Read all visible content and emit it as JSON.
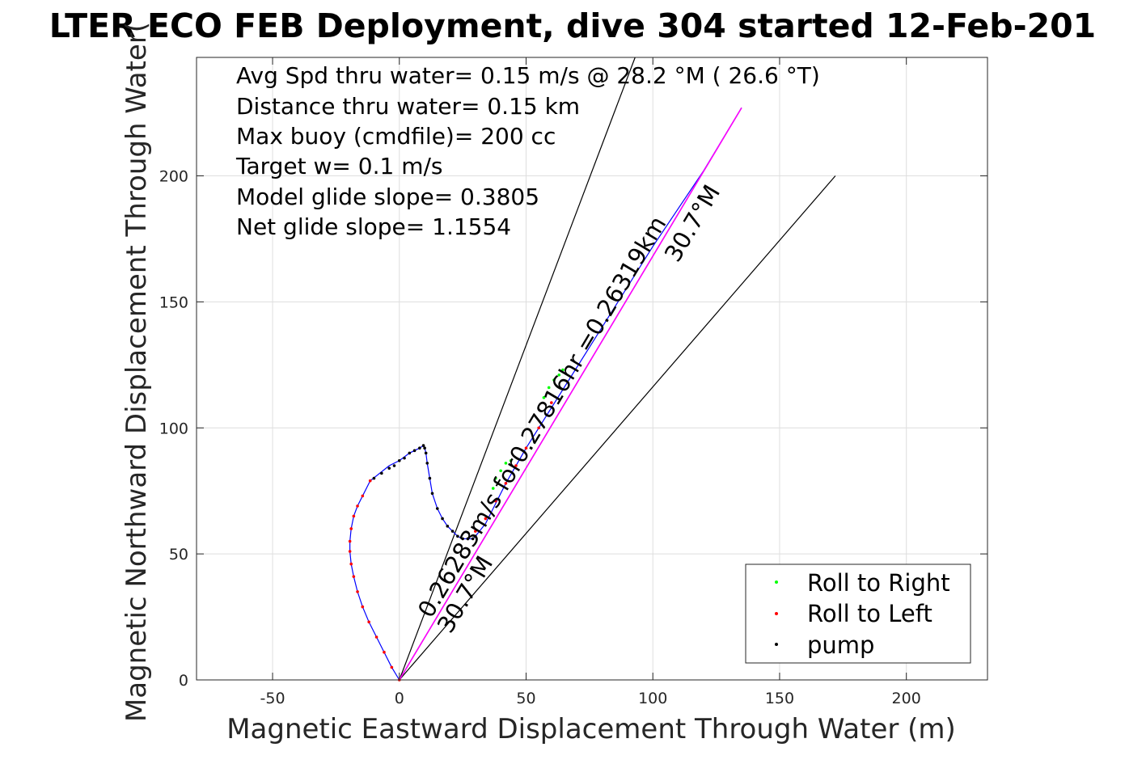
{
  "chart_data": {
    "type": "scatter",
    "title": "LTER ECO FEB Deployment, dive 304 started 12-Feb-201",
    "xlabel": "Magnetic Eastward Displacement Through Water (m)",
    "ylabel": "Magnetic Northward Displacement Through Water(",
    "xlim": [
      -80,
      232
    ],
    "ylim": [
      0,
      247
    ],
    "grid": true,
    "x_ticks": [
      -50,
      0,
      50,
      100,
      150,
      200
    ],
    "x_tick_labels": [
      "-50",
      "0",
      "50",
      "100",
      "150",
      "200"
    ],
    "y_ticks": [
      0,
      50,
      100,
      150,
      200
    ],
    "y_tick_labels": [
      "0",
      "50",
      "100",
      "150",
      "200"
    ],
    "annotations": [
      "Avg Spd thru water=  0.15 m/s @  28.2 °M ( 26.6 °T)",
      "Distance thru water=  0.15 km",
      "Max buoy (cmdfile)= 200 cc",
      "Target w= 0.1 m/s",
      "Model glide slope= 0.3805",
      "Net glide slope= 1.1554"
    ],
    "rotated_labels": [
      {
        "text": "0.26283m/s for0.27816hr =0.26319km",
        "angle_deg": 30.7
      },
      {
        "text": "30.7°M",
        "angle_deg": 30.7
      },
      {
        "text": "30.7°M",
        "angle_deg": 30.7
      }
    ],
    "reference_lines": [
      {
        "name": "left-bound",
        "x": [
          0,
          93
        ],
        "y": [
          0,
          247
        ]
      },
      {
        "name": "heading",
        "x": [
          0,
          135
        ],
        "y": [
          0,
          227
        ]
      },
      {
        "name": "right-bound",
        "x": [
          0,
          172
        ],
        "y": [
          0,
          200
        ]
      }
    ],
    "legend": {
      "location": "bottom-right",
      "entries": [
        {
          "label": "Roll to Right",
          "color": "#00ff00"
        },
        {
          "label": "Roll to Left",
          "color": "#ff0000"
        },
        {
          "label": "pump",
          "color": "#000000"
        }
      ]
    },
    "series": [
      {
        "kind": "roll-left",
        "color": "#ff0000",
        "x": [
          0,
          -3,
          -6,
          -9,
          -12,
          -14.5,
          -16.5,
          -18,
          -19,
          -19.5,
          -19.5,
          -19,
          -18,
          -16.5,
          -14.5,
          -11.5
        ],
        "y": [
          0,
          5,
          11,
          17,
          23,
          29,
          35,
          41,
          46,
          51,
          55,
          60,
          65,
          69,
          73,
          79
        ]
      },
      {
        "kind": "roll-left",
        "color": "#ff0000",
        "x": [
          30,
          34,
          38,
          42,
          46,
          50,
          55,
          60
        ],
        "y": [
          59,
          64,
          71,
          78,
          85,
          92,
          100,
          110
        ]
      },
      {
        "kind": "roll-right",
        "color": "#00ff00",
        "x": [
          37,
          38,
          40,
          42,
          44
        ],
        "y": [
          76,
          80,
          83,
          86,
          87
        ]
      },
      {
        "kind": "roll-right",
        "color": "#00ff00",
        "x": [
          57,
          59,
          61,
          63,
          64.5
        ],
        "y": [
          112,
          116,
          119,
          121,
          123
        ]
      },
      {
        "kind": "pump",
        "color": "#000000",
        "x": [
          -10,
          -7,
          -4,
          -2,
          0,
          2,
          4,
          6,
          8,
          9.5,
          10,
          10.5,
          11,
          12,
          13,
          15,
          17,
          19,
          21,
          23,
          25,
          27,
          29,
          30
        ],
        "y": [
          80,
          82,
          84,
          85,
          87,
          88,
          90,
          91,
          92,
          93,
          92,
          90,
          86,
          80,
          74,
          68,
          64,
          61,
          59,
          57,
          56,
          56,
          56,
          57
        ]
      }
    ],
    "track": {
      "color": "#0000ff",
      "x": [
        0,
        -3,
        -6,
        -9,
        -12,
        -14.5,
        -16.5,
        -18,
        -19,
        -19.5,
        -19.5,
        -19,
        -18,
        -16.5,
        -14.5,
        -11.5,
        -4,
        0,
        4,
        8,
        9.5,
        10,
        10.5,
        11,
        12,
        13,
        15,
        17,
        19,
        21,
        23,
        25,
        27,
        29,
        30,
        34,
        38,
        42,
        46,
        50,
        55,
        60,
        65,
        80,
        100,
        120,
        135
      ],
      "y": [
        0,
        5,
        11,
        17,
        23,
        29,
        35,
        41,
        46,
        51,
        55,
        60,
        65,
        69,
        73,
        79,
        85,
        87,
        90,
        92,
        93,
        92,
        90,
        86,
        80,
        74,
        68,
        64,
        61,
        59,
        57,
        56,
        56,
        56,
        57,
        62,
        70,
        78,
        85,
        92,
        100,
        108,
        116,
        140,
        172,
        202,
        227
      ]
    },
    "heading_line": {
      "color": "#ff00ff",
      "x": [
        0,
        135
      ],
      "y": [
        0,
        227
      ]
    }
  }
}
